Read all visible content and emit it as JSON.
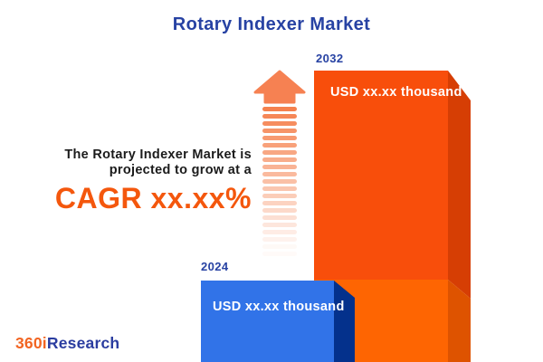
{
  "title": "Rotary Indexer Market",
  "annotation": {
    "line1": "The Rotary Indexer Market is",
    "line2": "projected to grow at a",
    "cagr": "CAGR xx.xx%"
  },
  "chart_data": {
    "type": "bar",
    "title": "Rotary Indexer Market",
    "categories": [
      "2024",
      "2032"
    ],
    "values": [
      null,
      null
    ],
    "value_labels": [
      "USD xx.xx thousand",
      "USD xx.xx thousand"
    ],
    "unit": "USD thousand",
    "growth_note": "The Rotary Indexer Market is projected to grow at a CAGR xx.xx%",
    "bar_colors": [
      "#3173e8",
      "#f84e0b"
    ],
    "bar_side_colors": [
      "#04318c",
      "#d63e04"
    ],
    "layout": "3d-bars, smaller 2024 blue bar at left front, larger 2032 orange bar at right, growth arrow between annotation and bars"
  },
  "colors": {
    "title_blue": "#2742a3",
    "cagr_orange": "#f4570d",
    "arrow_orange": "#f5814e",
    "orange_face_upper": "#f84e0b",
    "orange_face_lower": "#fe6502",
    "orange_side_upper": "#d63e04",
    "orange_side_lower": "#de5300",
    "blue_face": "#3173e8",
    "blue_side": "#04318c",
    "background": "#ffffff"
  },
  "logo": {
    "part1": "360i",
    "part2": "Research"
  }
}
